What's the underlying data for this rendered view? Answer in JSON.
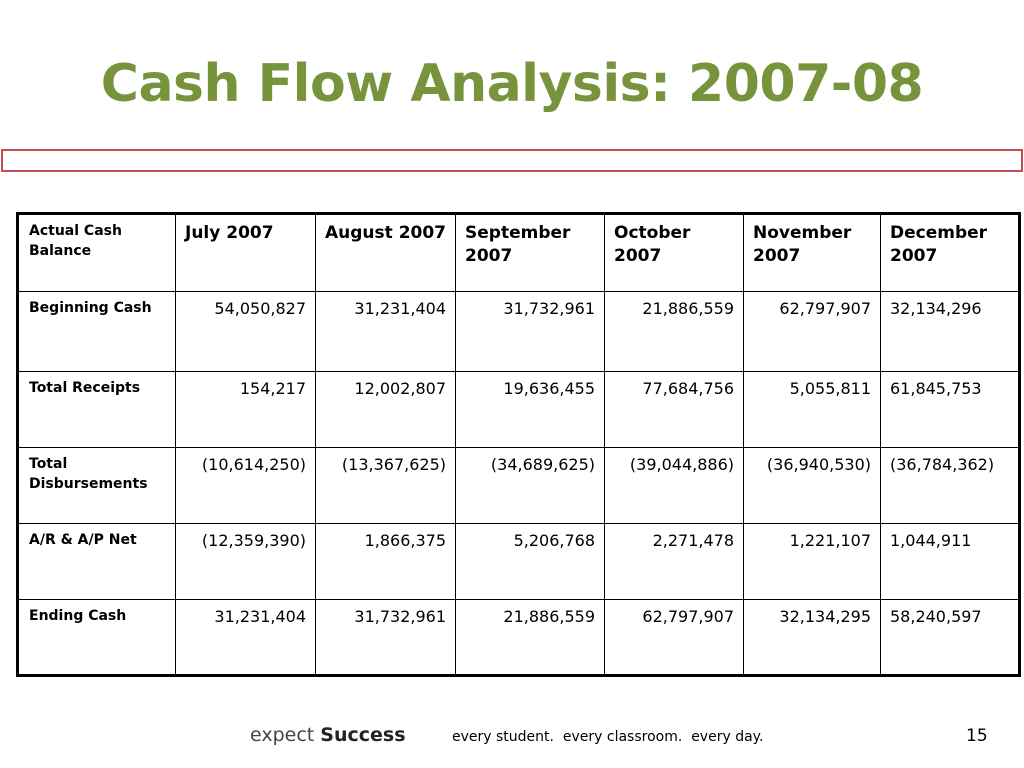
{
  "slide": {
    "title": "Cash Flow Analysis: 2007-08",
    "accent_color": "#77933c",
    "bar_color": "#c0504d"
  },
  "table": {
    "corner_label": "Actual Cash Balance",
    "columns": [
      "July 2007",
      "August 2007",
      "September 2007",
      "October 2007",
      "November 2007",
      "December 2007"
    ],
    "rows": [
      {
        "label": "Beginning Cash",
        "values": [
          "54,050,827",
          "31,231,404",
          "31,732,961",
          "21,886,559",
          "62,797,907",
          "32,134,296"
        ]
      },
      {
        "label": "Total Receipts",
        "values": [
          "154,217",
          "12,002,807",
          "19,636,455",
          "77,684,756",
          "5,055,811",
          "61,845,753"
        ]
      },
      {
        "label": "Total Disbursements",
        "values": [
          "(10,614,250)",
          "(13,367,625)",
          "(34,689,625)",
          "(39,044,886)",
          "(36,940,530)",
          "(36,784,362)"
        ]
      },
      {
        "label": "A/R & A/P Net",
        "values": [
          "(12,359,390)",
          "1,866,375",
          "5,206,768",
          "2,271,478",
          "1,221,107",
          "1,044,911"
        ]
      },
      {
        "label": "Ending Cash",
        "values": [
          "31,231,404",
          "31,732,961",
          "21,886,559",
          "62,797,907",
          "32,134,295",
          "58,240,597"
        ]
      }
    ]
  },
  "footer": {
    "brand_light": "expect",
    "brand_bold": "Success",
    "tagline": "every student.  every classroom.  every day.",
    "page_number": "15"
  }
}
